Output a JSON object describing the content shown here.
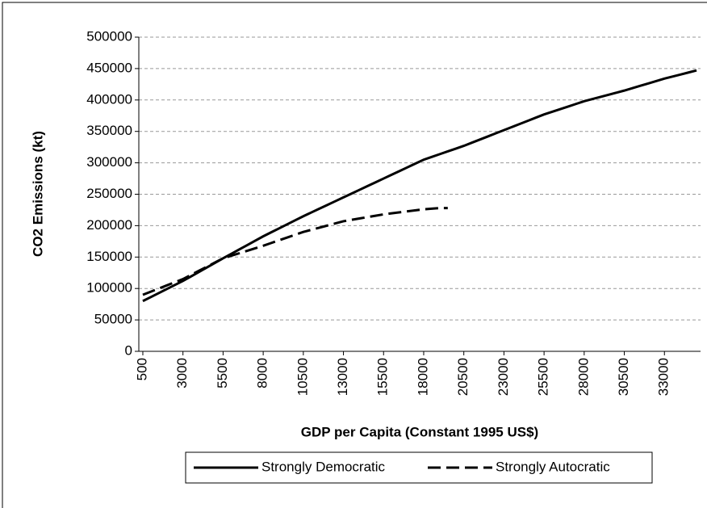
{
  "chart_data": {
    "type": "line",
    "x_label": "GDP per Capita (Constant 1995 US$)",
    "y_label": "CO2 Emissions (kt)",
    "x": [
      500,
      1000,
      1500,
      2000,
      2500,
      3000,
      3500,
      4000,
      4500,
      5000,
      5500,
      6000,
      6500,
      7000,
      7500,
      8000,
      8500,
      9000,
      9500,
      10000,
      10500,
      11000,
      11500,
      12000,
      12500,
      13000,
      13500,
      14000,
      14500,
      15000,
      15500,
      16000,
      16500,
      17000,
      17500,
      18000,
      18500,
      19000,
      19500,
      20000,
      20500,
      21000,
      21500,
      22000,
      22500,
      23000,
      23500,
      24000,
      24500,
      25000,
      25500,
      26000,
      26500,
      27000,
      27500,
      28000,
      28500,
      29000,
      29500,
      30000,
      30500,
      31000,
      31500,
      32000,
      32500,
      33000,
      33500,
      34000,
      34500,
      35000
    ],
    "series": [
      {
        "name": "Strongly Democratic",
        "color": "#000000",
        "dash": [],
        "values": [
          80000,
          86400,
          92800,
          99200,
          105600,
          112000,
          119200,
          126400,
          133600,
          140800,
          148000,
          155000,
          162000,
          169000,
          176000,
          183000,
          189400,
          195800,
          202200,
          208600,
          215000,
          221000,
          227000,
          233000,
          239000,
          245000,
          251000,
          257000,
          263000,
          269000,
          275000,
          281000,
          287000,
          293000,
          299000,
          305000,
          309400,
          313800,
          318200,
          322600,
          327000,
          332000,
          337000,
          342000,
          347000,
          352000,
          357000,
          362000,
          367000,
          372000,
          377000,
          381200,
          385400,
          389600,
          393800,
          398000,
          401400,
          404800,
          408200,
          411600,
          415000,
          418800,
          422600,
          426400,
          430200,
          434000,
          437250,
          440500,
          443750,
          447000
        ]
      },
      {
        "name": "Strongly Autocratic",
        "color": "#000000",
        "dash": [
          16,
          7
        ],
        "values": [
          90000,
          95000,
          100000,
          105000,
          110000,
          115000,
          121600,
          128200,
          134800,
          141400,
          148000,
          152000,
          156000,
          160000,
          164000,
          168000,
          172400,
          176800,
          181200,
          185600,
          190000,
          193400,
          196800,
          200200,
          203600,
          207000,
          209200,
          211400,
          213600,
          215800,
          218000,
          219600,
          221200,
          222800,
          224400,
          226000,
          227000,
          228000,
          228000,
          null,
          null,
          null,
          null,
          null,
          null,
          null,
          null,
          null,
          null,
          null,
          null,
          null,
          null,
          null,
          null,
          null,
          null,
          null,
          null,
          null,
          null,
          null,
          null,
          null,
          null,
          null,
          null,
          null,
          null,
          null
        ]
      }
    ],
    "xlim": [
      250,
      35250
    ],
    "xticks": [
      500,
      3000,
      5500,
      8000,
      10500,
      13000,
      15500,
      18000,
      20500,
      23000,
      25500,
      28000,
      30500,
      33000
    ],
    "ylim": [
      0,
      500000
    ],
    "yticks": [
      0,
      50000,
      100000,
      150000,
      200000,
      250000,
      300000,
      350000,
      400000,
      450000,
      500000
    ],
    "grid": true
  }
}
